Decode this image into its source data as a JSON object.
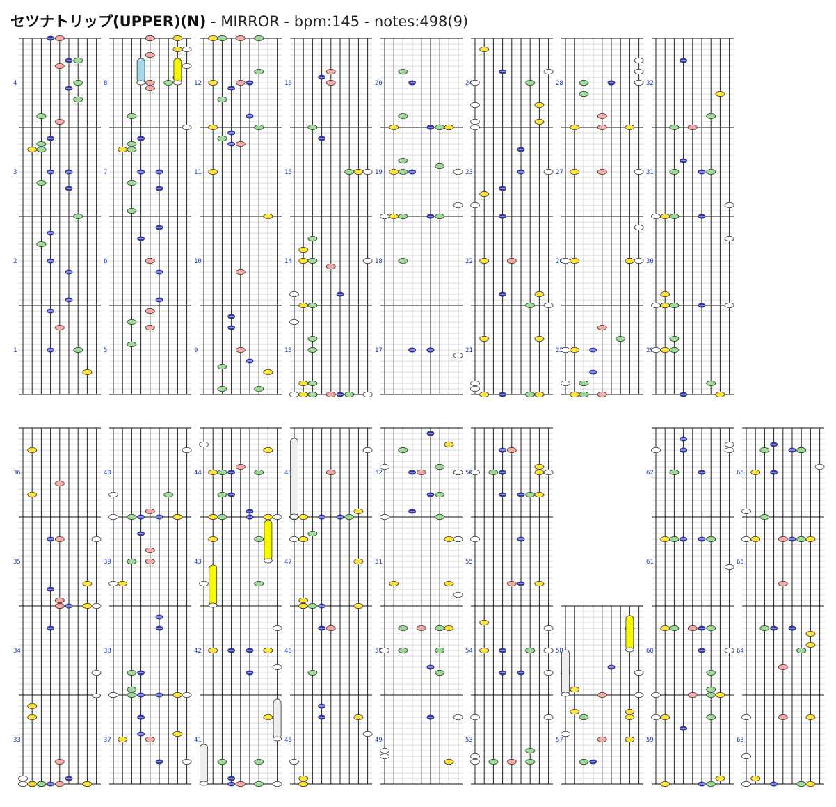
{
  "title": {
    "song": "セツナトリップ(UPPER)(N)",
    "meta": " - MIRROR - bpm:145 - notes:498(9)"
  },
  "colors": {
    "yellow": "#ffe23c",
    "green": "#9cdc96",
    "blue": "#2f37d8",
    "pink": "#f7a9a6",
    "white": "#ffffff",
    "blue_long": "#a8d8ea",
    "yellow_long": "#f7f700",
    "gray_long": "#eeeeee",
    "measure_label": "#1b3cc9"
  },
  "lanes": [
    "white",
    "yellow",
    "green",
    "blue",
    "pink",
    "blue",
    "green",
    "yellow",
    "white"
  ],
  "columns": [
    {
      "measures": [
        "1",
        "2",
        "3",
        "4"
      ],
      "notes": [
        [
          4,
          3,
          0
        ],
        [
          3,
          2,
          0
        ],
        [
          6,
          2,
          0
        ],
        [
          7,
          1,
          0
        ],
        [
          3,
          3,
          12
        ],
        [
          5,
          3,
          20
        ],
        [
          5,
          4,
          24
        ],
        [
          2,
          5,
          28
        ],
        [
          3,
          6,
          32
        ],
        [
          6,
          8,
          32
        ],
        [
          3,
          7,
          36
        ],
        [
          1,
          10,
          48
        ],
        [
          2,
          10,
          52
        ],
        [
          3,
          10,
          56
        ],
        [
          3,
          10,
          64
        ],
        [
          2,
          9,
          72
        ],
        [
          5,
          9,
          80
        ],
        [
          5,
          8,
          84
        ],
        [
          2,
          11,
          88
        ],
        [
          2,
          11,
          96
        ],
        [
          6,
          13,
          112
        ],
        [
          6,
          12,
          116
        ],
        [
          5,
          12,
          124
        ],
        [
          4,
          12,
          132
        ],
        [
          4,
          14,
          140
        ],
        [
          6,
          14,
          144
        ],
        [
          4,
          15,
          148
        ],
        [
          3,
          15,
          156
        ],
        [
          5,
          15,
          160
        ]
      ]
    },
    {
      "measures": [
        "5",
        "6",
        "7",
        "8"
      ],
      "notes": [
        [
          2,
          3,
          4
        ],
        [
          2,
          2,
          4
        ],
        [
          4,
          3,
          12
        ],
        [
          4,
          2,
          16
        ],
        [
          5,
          3,
          20
        ],
        [
          5,
          4,
          24
        ],
        [
          5,
          6,
          24
        ],
        [
          4,
          6,
          32
        ],
        [
          3,
          7,
          32
        ],
        [
          2,
          8,
          36
        ],
        [
          1,
          10,
          48
        ],
        [
          2,
          10,
          52
        ],
        [
          3,
          10,
          56
        ],
        [
          3,
          10,
          64
        ],
        [
          2,
          9,
          72
        ],
        [
          5,
          9,
          80
        ],
        [
          5,
          8,
          84
        ],
        [
          2,
          11,
          88
        ],
        [
          2,
          11,
          96
        ],
        [
          6,
          13,
          112
        ],
        [
          7,
          13,
          116
        ],
        [
          7,
          14,
          120
        ],
        [
          7,
          15,
          124
        ],
        [
          4,
          14,
          128
        ],
        [
          4,
          15,
          132
        ],
        [
          4,
          16,
          136
        ],
        [
          4,
          16,
          140
        ],
        [
          8,
          14,
          120
        ],
        [
          8,
          13,
          124
        ],
        [
          8,
          12,
          128
        ],
        [
          4,
          13,
          108
        ]
      ]
    },
    {
      "measures": [
        "9",
        "10",
        "11",
        "12"
      ],
      "notes": [
        [
          2,
          1,
          4
        ],
        [
          2,
          0,
          4
        ],
        [
          4,
          1,
          16
        ],
        [
          3,
          2,
          24
        ],
        [
          5,
          1,
          40
        ],
        [
          3,
          3,
          0
        ],
        [
          6,
          0,
          4
        ],
        [
          7,
          1,
          0
        ],
        [
          4,
          4,
          24
        ],
        [
          7,
          8,
          32
        ],
        [
          1,
          9,
          48
        ],
        [
          3,
          10,
          52
        ],
        [
          2,
          10,
          56
        ],
        [
          1,
          12,
          64
        ],
        [
          5,
          12,
          72
        ],
        [
          2,
          12,
          84
        ],
        [
          3,
          12,
          92
        ],
        [
          6,
          12,
          96
        ],
        [
          4,
          11,
          100
        ],
        [
          3,
          11,
          108
        ],
        [
          5,
          13,
          112
        ],
        [
          6,
          13,
          120
        ],
        [
          4,
          14,
          128
        ],
        [
          1,
          14,
          128
        ],
        [
          1,
          15,
          144
        ],
        [
          4,
          15,
          152
        ],
        [
          2,
          15,
          120
        ],
        [
          6,
          15,
          116
        ]
      ]
    }
  ]
}
